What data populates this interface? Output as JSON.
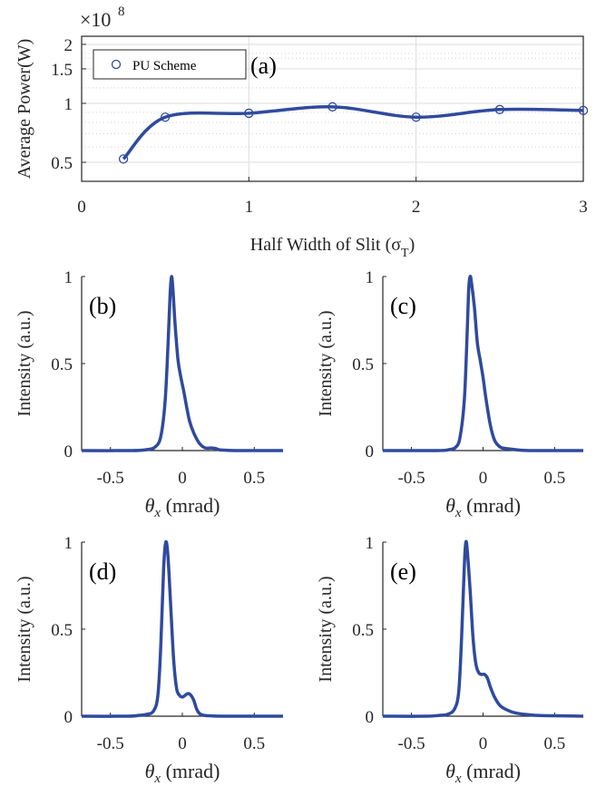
{
  "colors": {
    "line": "#2f4a9e",
    "axis": "#262626",
    "grid": "#dcdcdc"
  },
  "chart_data": [
    {
      "id": "a",
      "type": "line",
      "panel_label": "(a)",
      "xlabel": "Half Width of Slit (σ",
      "xlabel_sub": "T",
      "xlabel_close": ")",
      "ylabel": "Average Power(W)",
      "exponent_label": "×10",
      "exponent_power": "8",
      "y_scale": "log",
      "xlim": [
        0,
        3
      ],
      "ylim": [
        0.4,
        2.2
      ],
      "xticks": [
        0,
        1,
        2,
        3
      ],
      "xtick_labels": [
        "0",
        "1",
        "2",
        "3"
      ],
      "yticks": [
        0.5,
        1,
        1.5,
        2
      ],
      "ytick_labels": [
        "0.5",
        "1",
        "1.5",
        "2"
      ],
      "grid": true,
      "legend": "top-left",
      "series": [
        {
          "name": "PU Scheme",
          "x": [
            0.25,
            0.5,
            1.0,
            1.5,
            2.0,
            2.5,
            3.0
          ],
          "values": [
            0.52,
            0.85,
            0.89,
            0.96,
            0.85,
            0.93,
            0.92
          ]
        }
      ]
    },
    {
      "id": "b",
      "type": "line",
      "panel_label": "(b)",
      "xlabel": "θ",
      "xlabel_sub": "x",
      "xlabel_rest": " (mrad)",
      "ylabel": "Intensity (a.u.)",
      "xlim": [
        -0.7,
        0.7
      ],
      "ylim": [
        0,
        1
      ],
      "xticks": [
        -0.5,
        0,
        0.5
      ],
      "xtick_labels": [
        "-0.5",
        "0",
        "0.5"
      ],
      "yticks": [
        0,
        0.5,
        1
      ],
      "ytick_labels": [
        "0",
        "0.5",
        "1"
      ],
      "series": [
        {
          "x": [
            -0.7,
            -0.35,
            -0.25,
            -0.19,
            -0.15,
            -0.12,
            -0.1,
            -0.085,
            -0.075,
            -0.065,
            -0.05,
            -0.03,
            -0.01,
            0.01,
            0.03,
            0.05,
            0.08,
            0.12,
            0.16,
            0.2,
            0.23,
            0.26,
            0.3,
            0.4,
            0.7
          ],
          "values": [
            0,
            0,
            0.005,
            0.02,
            0.08,
            0.28,
            0.6,
            0.9,
            1.0,
            0.92,
            0.72,
            0.52,
            0.42,
            0.34,
            0.25,
            0.17,
            0.1,
            0.04,
            0.015,
            0.015,
            0.012,
            0.004,
            0.002,
            0,
            0
          ]
        }
      ]
    },
    {
      "id": "c",
      "type": "line",
      "panel_label": "(c)",
      "xlabel": "θ",
      "xlabel_sub": "x",
      "xlabel_rest": " (mrad)",
      "ylabel": "Intensity (a.u.)",
      "xlim": [
        -0.7,
        0.7
      ],
      "ylim": [
        0,
        1
      ],
      "xticks": [
        -0.5,
        0,
        0.5
      ],
      "xtick_labels": [
        "-0.5",
        "0",
        "0.5"
      ],
      "yticks": [
        0,
        0.5,
        1
      ],
      "ytick_labels": [
        "0",
        "0.5",
        "1"
      ],
      "series": [
        {
          "x": [
            -0.7,
            -0.32,
            -0.24,
            -0.19,
            -0.16,
            -0.13,
            -0.11,
            -0.1,
            -0.09,
            -0.08,
            -0.06,
            -0.04,
            -0.02,
            0.0,
            0.02,
            0.05,
            0.08,
            0.12,
            0.16,
            0.2,
            0.25,
            0.35,
            0.7
          ],
          "values": [
            0,
            0,
            0.005,
            0.02,
            0.08,
            0.3,
            0.7,
            0.93,
            1.0,
            0.96,
            0.82,
            0.62,
            0.52,
            0.42,
            0.3,
            0.15,
            0.06,
            0.02,
            0.012,
            0.008,
            0.003,
            0,
            0
          ]
        }
      ]
    },
    {
      "id": "d",
      "type": "line",
      "panel_label": "(d)",
      "xlabel": "θ",
      "xlabel_sub": "x",
      "xlabel_rest": " (mrad)",
      "ylabel": "Intensity (a.u.)",
      "xlim": [
        -0.7,
        0.7
      ],
      "ylim": [
        0,
        1
      ],
      "xticks": [
        -0.5,
        0,
        0.5
      ],
      "xtick_labels": [
        "-0.5",
        "0",
        "0.5"
      ],
      "yticks": [
        0,
        0.5,
        1
      ],
      "ytick_labels": [
        "0",
        "0.5",
        "1"
      ],
      "series": [
        {
          "x": [
            -0.7,
            -0.38,
            -0.3,
            -0.25,
            -0.2,
            -0.17,
            -0.15,
            -0.13,
            -0.115,
            -0.1,
            -0.08,
            -0.06,
            -0.04,
            -0.02,
            0.0,
            0.02,
            0.04,
            0.06,
            0.08,
            0.1,
            0.12,
            0.15,
            0.2,
            0.3,
            0.7
          ],
          "values": [
            0,
            0,
            0.005,
            0.01,
            0.03,
            0.12,
            0.4,
            0.85,
            1.0,
            0.92,
            0.62,
            0.32,
            0.16,
            0.12,
            0.11,
            0.12,
            0.13,
            0.12,
            0.09,
            0.04,
            0.015,
            0.005,
            0.002,
            0,
            0
          ]
        }
      ]
    },
    {
      "id": "e",
      "type": "line",
      "panel_label": "(e)",
      "xlabel": "θ",
      "xlabel_sub": "x",
      "xlabel_rest": " (mrad)",
      "ylabel": "Intensity (a.u.)",
      "xlim": [
        -0.7,
        0.7
      ],
      "ylim": [
        0,
        1
      ],
      "xticks": [
        -0.5,
        0,
        0.5
      ],
      "xtick_labels": [
        "-0.5",
        "0",
        "0.5"
      ],
      "yticks": [
        0,
        0.5,
        1
      ],
      "ytick_labels": [
        "0",
        "0.5",
        "1"
      ],
      "series": [
        {
          "x": [
            -0.7,
            -0.4,
            -0.3,
            -0.25,
            -0.2,
            -0.17,
            -0.15,
            -0.13,
            -0.12,
            -0.11,
            -0.09,
            -0.07,
            -0.05,
            -0.03,
            -0.01,
            0.01,
            0.03,
            0.05,
            0.08,
            0.12,
            0.17,
            0.22,
            0.3,
            0.4,
            0.55,
            0.7
          ],
          "values": [
            0,
            0,
            0.005,
            0.01,
            0.04,
            0.14,
            0.45,
            0.88,
            1.0,
            0.95,
            0.72,
            0.45,
            0.3,
            0.25,
            0.24,
            0.24,
            0.22,
            0.17,
            0.11,
            0.06,
            0.035,
            0.02,
            0.01,
            0.004,
            0.002,
            0
          ]
        }
      ]
    }
  ]
}
